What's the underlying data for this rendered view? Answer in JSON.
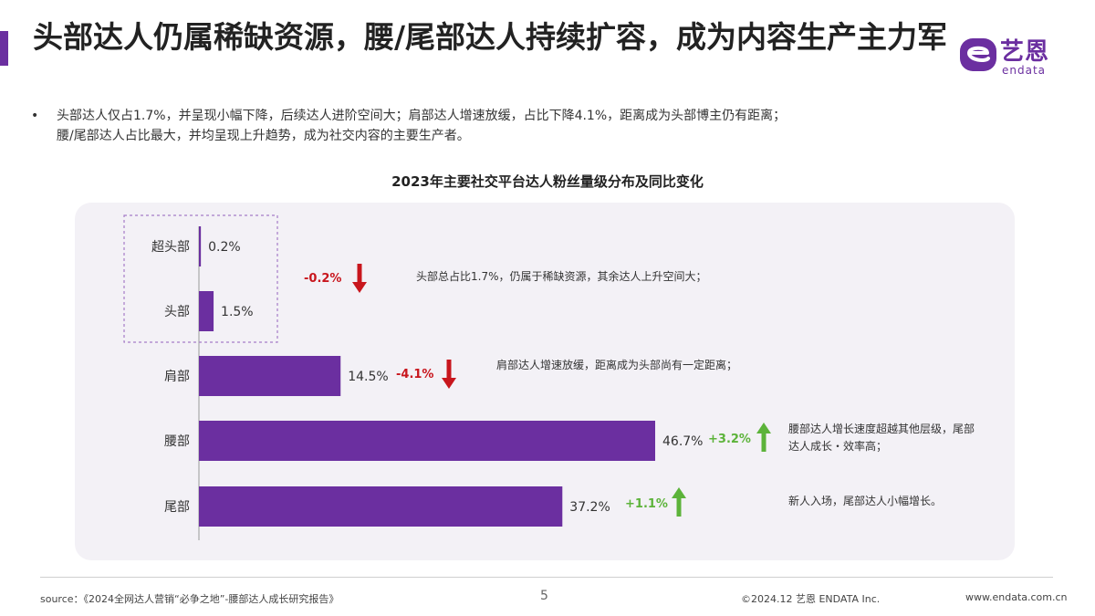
{
  "header": {
    "title": "头部达人仍属稀缺资源，腰/尾部达人持续扩容，成为内容生产主力军"
  },
  "logo": {
    "cn": "艺恩",
    "en": "endata"
  },
  "summary": {
    "bullet": "•",
    "lines": [
      "头部达人仅占1.7%，并呈现小幅下降，后续达人进阶空间大；肩部达人增速放缓，占比下降4.1%，距离成为头部博主仍有距离；",
      "腰/尾部达人占比最大，并均呈现上升趋势，成为社交内容的主要生产者。"
    ]
  },
  "chart_data": {
    "type": "bar",
    "orientation": "horizontal",
    "title": "2023年主要社交平台达人粉丝量级分布及同比变化",
    "categories": [
      "超头部",
      "头部",
      "肩部",
      "腰部",
      "尾部"
    ],
    "values": [
      0.2,
      1.5,
      14.5,
      46.7,
      37.2
    ],
    "value_labels": [
      "0.2%",
      "1.5%",
      "14.5%",
      "46.7%",
      "37.2%"
    ],
    "xlim": [
      0,
      50
    ],
    "grid": false,
    "bar_color": "#6b2fa0",
    "changes": [
      {
        "group": [
          "超头部",
          "头部"
        ],
        "label": "-0.2%",
        "direction": "down",
        "color": "#c8161d",
        "note": "头部总占比1.7%，仍属于稀缺资源，其余达人上升空间大；"
      },
      {
        "group": [
          "肩部"
        ],
        "label": "-4.1%",
        "direction": "down",
        "color": "#c8161d",
        "note": "肩部达人增速放缓，距离成为头部尚有一定距离；"
      },
      {
        "group": [
          "腰部"
        ],
        "label": "+3.2%",
        "direction": "up",
        "color": "#5cb33a",
        "note_lines": [
          "腰部达人增长速度超越其他层级，尾部",
          "达人成长・效率高；"
        ]
      },
      {
        "group": [
          "尾部"
        ],
        "label": "+1.1%",
        "direction": "up",
        "color": "#5cb33a",
        "note": "新人入场，尾部达人小幅增长。"
      }
    ]
  },
  "footer": {
    "source": "source：《2024全网达人营销“必争之地”-腰部达人成长研究报告》",
    "page": "5",
    "copyright": "©2024.12 艺恩 ENDATA Inc.",
    "url": "www.endata.com.cn"
  }
}
